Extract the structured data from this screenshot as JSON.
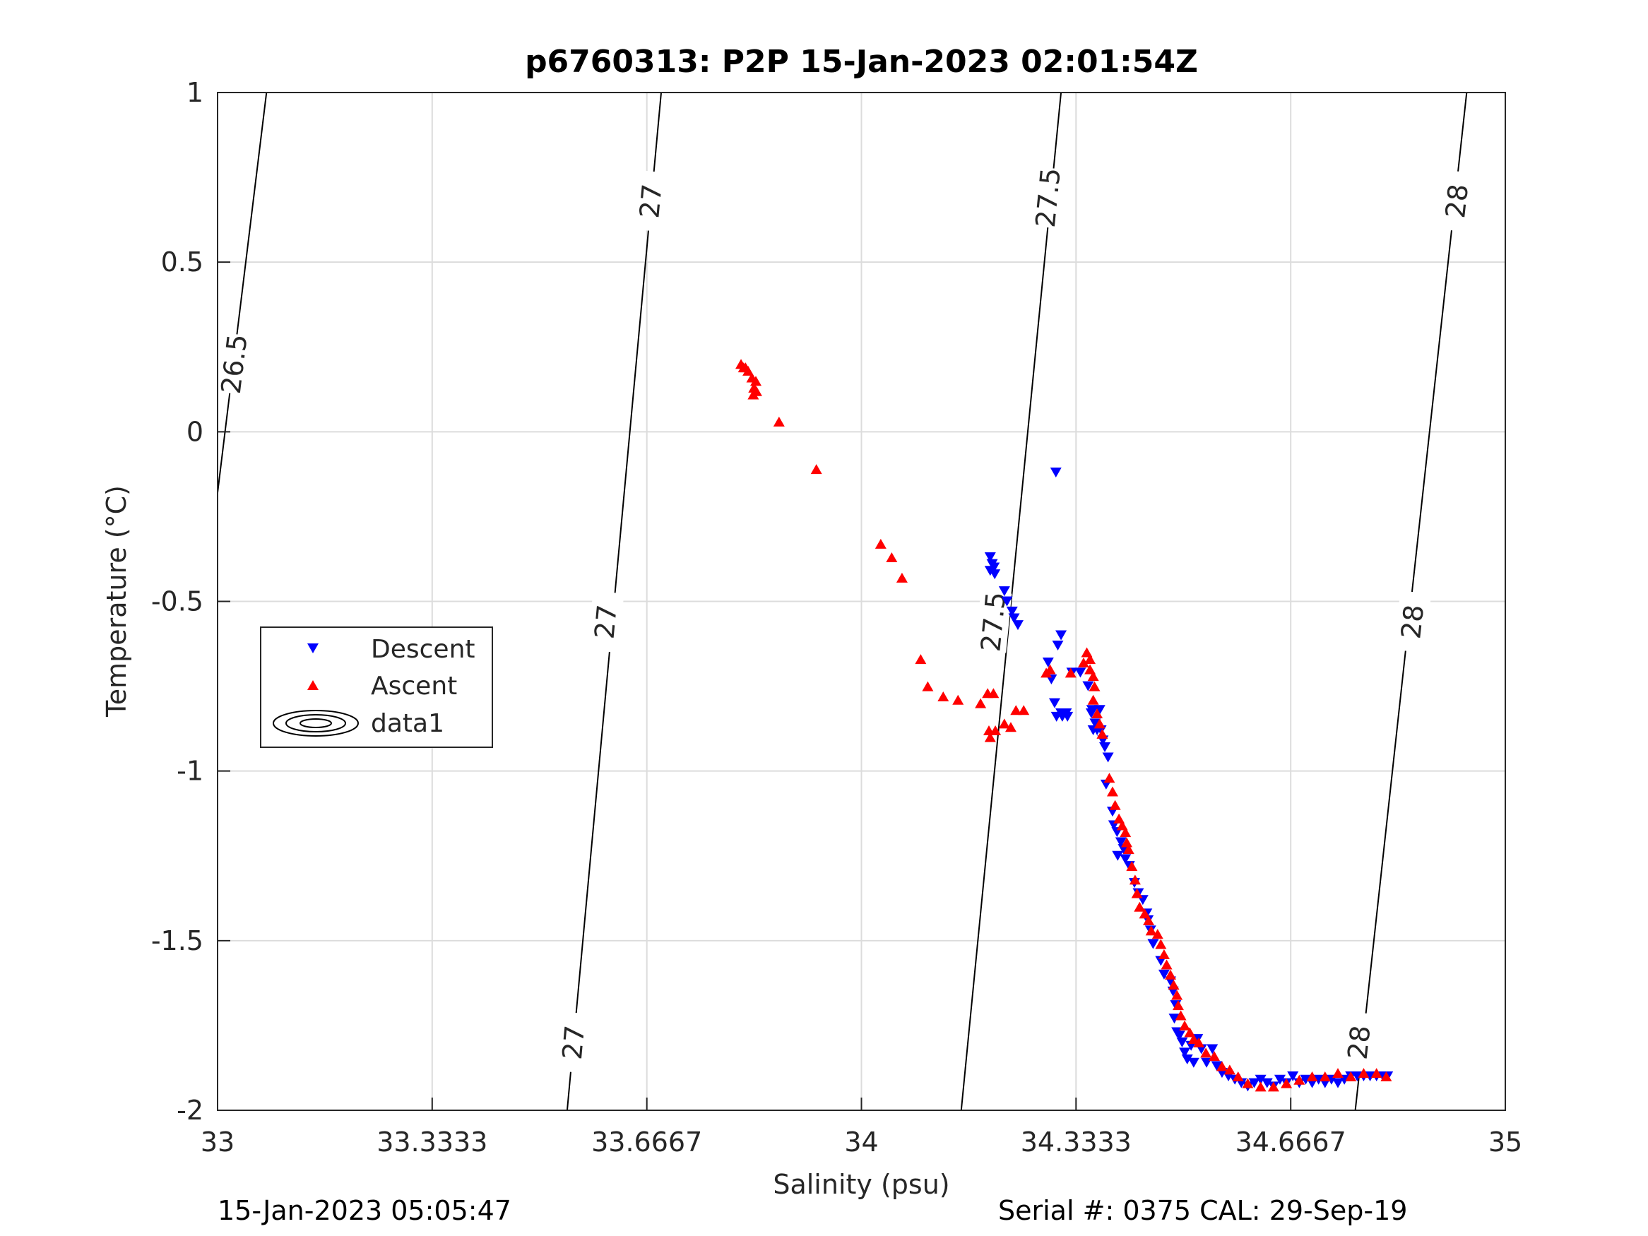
{
  "chart_data": {
    "type": "scatter",
    "title": "p6760313: P2P 15-Jan-2023 02:01:54Z",
    "xlabel": "Salinity (psu)",
    "ylabel": "Temperature (°C)",
    "xlim": [
      33,
      35
    ],
    "ylim": [
      -2,
      1
    ],
    "xticks": [
      33,
      33.3333,
      33.6667,
      34,
      34.3333,
      34.6667,
      35
    ],
    "xtick_labels": [
      "33",
      "33.3333",
      "33.6667",
      "34",
      "34.3333",
      "34.6667",
      "35"
    ],
    "yticks": [
      -2,
      -1.5,
      -1,
      -0.5,
      0,
      0.5,
      1
    ],
    "ytick_labels": [
      "-2",
      "-1.5",
      "-1",
      "-0.5",
      "0",
      "0.5",
      "1"
    ],
    "grid": true,
    "legend_position": "left-middle",
    "legend": [
      "Descent",
      "Ascent",
      "data1"
    ],
    "contours": [
      {
        "level": "26.5",
        "points": [
          [
            33.0,
            -0.18
          ],
          [
            33.076,
            1.0
          ]
        ],
        "labels": [
          [
            33.026,
            0.2
          ]
        ]
      },
      {
        "level": "27",
        "points": [
          [
            33.543,
            -2.0
          ],
          [
            33.689,
            1.0
          ]
        ],
        "labels": [
          [
            33.553,
            -1.8
          ],
          [
            33.603,
            -0.56
          ],
          [
            33.673,
            0.68
          ]
        ]
      },
      {
        "level": "27.5",
        "points": [
          [
            34.155,
            -2.0
          ],
          [
            34.31,
            1.0
          ]
        ],
        "labels": [
          [
            34.205,
            -0.56
          ],
          [
            34.29,
            0.69
          ]
        ]
      },
      {
        "level": "28",
        "points": [
          [
            34.767,
            -2.0
          ],
          [
            34.94,
            1.0
          ]
        ],
        "labels": [
          [
            34.773,
            -1.8
          ],
          [
            34.856,
            -0.56
          ],
          [
            34.925,
            0.68
          ]
        ]
      }
    ],
    "series": [
      {
        "name": "Descent",
        "marker": "triangle-down",
        "color": "#0000ff",
        "points": [
          [
            34.302,
            -0.12
          ],
          [
            34.2,
            -0.37
          ],
          [
            34.203,
            -0.39
          ],
          [
            34.206,
            -0.4
          ],
          [
            34.2,
            -0.41
          ],
          [
            34.207,
            -0.42
          ],
          [
            34.222,
            -0.47
          ],
          [
            34.226,
            -0.5
          ],
          [
            34.234,
            -0.53
          ],
          [
            34.237,
            -0.55
          ],
          [
            34.243,
            -0.57
          ],
          [
            34.29,
            -0.68
          ],
          [
            34.295,
            -0.73
          ],
          [
            34.3,
            -0.8
          ],
          [
            34.31,
            -0.83
          ],
          [
            34.303,
            -0.84
          ],
          [
            34.312,
            -0.84
          ],
          [
            34.318,
            -0.83
          ],
          [
            34.32,
            -0.84
          ],
          [
            34.31,
            -0.6
          ],
          [
            34.305,
            -0.63
          ],
          [
            34.327,
            -0.71
          ],
          [
            34.34,
            -0.71
          ],
          [
            34.352,
            -0.75
          ],
          [
            34.358,
            -0.82
          ],
          [
            34.357,
            -0.83
          ],
          [
            34.363,
            -0.86
          ],
          [
            34.36,
            -0.88
          ],
          [
            34.366,
            -0.88
          ],
          [
            34.372,
            -0.88
          ],
          [
            34.375,
            -0.91
          ],
          [
            34.378,
            -0.93
          ],
          [
            34.383,
            -0.96
          ],
          [
            34.37,
            -0.82
          ],
          [
            34.38,
            -1.04
          ],
          [
            34.39,
            -1.12
          ],
          [
            34.392,
            -1.16
          ],
          [
            34.397,
            -1.18
          ],
          [
            34.403,
            -1.21
          ],
          [
            34.407,
            -1.23
          ],
          [
            34.398,
            -1.25
          ],
          [
            34.41,
            -1.26
          ],
          [
            34.416,
            -1.28
          ],
          [
            34.424,
            -1.33
          ],
          [
            34.43,
            -1.36
          ],
          [
            34.437,
            -1.38
          ],
          [
            34.443,
            -1.42
          ],
          [
            34.445,
            -1.44
          ],
          [
            34.449,
            -1.47
          ],
          [
            34.453,
            -1.51
          ],
          [
            34.465,
            -1.56
          ],
          [
            34.47,
            -1.6
          ],
          [
            34.48,
            -1.62
          ],
          [
            34.484,
            -1.65
          ],
          [
            34.488,
            -1.69
          ],
          [
            34.486,
            -1.73
          ],
          [
            34.49,
            -1.77
          ],
          [
            34.494,
            -1.78
          ],
          [
            34.498,
            -1.8
          ],
          [
            34.502,
            -1.83
          ],
          [
            34.506,
            -1.85
          ],
          [
            34.512,
            -1.81
          ],
          [
            34.516,
            -1.86
          ],
          [
            34.522,
            -1.79
          ],
          [
            34.528,
            -1.82
          ],
          [
            34.536,
            -1.86
          ],
          [
            34.545,
            -1.82
          ],
          [
            34.552,
            -1.87
          ],
          [
            34.56,
            -1.89
          ],
          [
            34.57,
            -1.9
          ],
          [
            34.58,
            -1.91
          ],
          [
            34.59,
            -1.92
          ],
          [
            34.6,
            -1.93
          ],
          [
            34.61,
            -1.92
          ],
          [
            34.62,
            -1.91
          ],
          [
            34.63,
            -1.92
          ],
          [
            34.64,
            -1.93
          ],
          [
            34.65,
            -1.91
          ],
          [
            34.66,
            -1.92
          ],
          [
            34.67,
            -1.9
          ],
          [
            34.68,
            -1.92
          ],
          [
            34.69,
            -1.91
          ],
          [
            34.7,
            -1.92
          ],
          [
            34.71,
            -1.91
          ],
          [
            34.72,
            -1.92
          ],
          [
            34.73,
            -1.91
          ],
          [
            34.74,
            -1.92
          ],
          [
            34.75,
            -1.91
          ],
          [
            34.76,
            -1.9
          ],
          [
            34.77,
            -1.9
          ],
          [
            34.78,
            -1.9
          ],
          [
            34.79,
            -1.9
          ],
          [
            34.8,
            -1.9
          ],
          [
            34.81,
            -1.9
          ],
          [
            34.817,
            -1.9
          ]
        ]
      },
      {
        "name": "Ascent",
        "marker": "triangle-up",
        "color": "#ff0000",
        "points": [
          [
            33.813,
            0.2
          ],
          [
            33.817,
            0.19
          ],
          [
            33.82,
            0.19
          ],
          [
            33.824,
            0.18
          ],
          [
            33.83,
            0.16
          ],
          [
            33.836,
            0.15
          ],
          [
            33.833,
            0.13
          ],
          [
            33.837,
            0.12
          ],
          [
            33.832,
            0.11
          ],
          [
            33.872,
            0.03
          ],
          [
            33.93,
            -0.11
          ],
          [
            34.03,
            -0.33
          ],
          [
            34.047,
            -0.37
          ],
          [
            34.063,
            -0.43
          ],
          [
            34.092,
            -0.67
          ],
          [
            34.103,
            -0.75
          ],
          [
            34.127,
            -0.78
          ],
          [
            34.15,
            -0.79
          ],
          [
            34.185,
            -0.8
          ],
          [
            34.196,
            -0.77
          ],
          [
            34.198,
            -0.88
          ],
          [
            34.208,
            -0.88
          ],
          [
            34.2,
            -0.9
          ],
          [
            34.222,
            -0.86
          ],
          [
            34.232,
            -0.87
          ],
          [
            34.24,
            -0.82
          ],
          [
            34.252,
            -0.82
          ],
          [
            34.205,
            -0.77
          ],
          [
            34.287,
            -0.71
          ],
          [
            34.293,
            -0.7
          ],
          [
            34.325,
            -0.71
          ],
          [
            34.345,
            -0.68
          ],
          [
            34.35,
            -0.65
          ],
          [
            34.355,
            -0.67
          ],
          [
            34.355,
            -0.7
          ],
          [
            34.36,
            -0.72
          ],
          [
            34.362,
            -0.75
          ],
          [
            34.36,
            -0.79
          ],
          [
            34.366,
            -0.83
          ],
          [
            34.37,
            -0.86
          ],
          [
            34.374,
            -0.89
          ],
          [
            34.385,
            -1.02
          ],
          [
            34.39,
            -1.06
          ],
          [
            34.394,
            -1.1
          ],
          [
            34.4,
            -1.14
          ],
          [
            34.405,
            -1.16
          ],
          [
            34.41,
            -1.18
          ],
          [
            34.412,
            -1.21
          ],
          [
            34.415,
            -1.23
          ],
          [
            34.42,
            -1.28
          ],
          [
            34.425,
            -1.32
          ],
          [
            34.428,
            -1.36
          ],
          [
            34.432,
            -1.4
          ],
          [
            34.44,
            -1.42
          ],
          [
            34.446,
            -1.44
          ],
          [
            34.45,
            -1.47
          ],
          [
            34.46,
            -1.48
          ],
          [
            34.465,
            -1.51
          ],
          [
            34.47,
            -1.54
          ],
          [
            34.474,
            -1.57
          ],
          [
            34.48,
            -1.6
          ],
          [
            34.485,
            -1.63
          ],
          [
            34.49,
            -1.66
          ],
          [
            34.492,
            -1.69
          ],
          [
            34.496,
            -1.72
          ],
          [
            34.502,
            -1.75
          ],
          [
            34.51,
            -1.77
          ],
          [
            34.516,
            -1.79
          ],
          [
            34.524,
            -1.8
          ],
          [
            34.535,
            -1.83
          ],
          [
            34.548,
            -1.84
          ],
          [
            34.56,
            -1.87
          ],
          [
            34.572,
            -1.88
          ],
          [
            34.585,
            -1.9
          ],
          [
            34.6,
            -1.92
          ],
          [
            34.62,
            -1.93
          ],
          [
            34.64,
            -1.93
          ],
          [
            34.66,
            -1.92
          ],
          [
            34.68,
            -1.91
          ],
          [
            34.7,
            -1.9
          ],
          [
            34.72,
            -1.9
          ],
          [
            34.74,
            -1.89
          ],
          [
            34.76,
            -1.9
          ],
          [
            34.78,
            -1.89
          ],
          [
            34.8,
            -1.89
          ],
          [
            34.815,
            -1.9
          ]
        ]
      }
    ]
  },
  "footer": {
    "timestamp": "15-Jan-2023 05:05:47",
    "serial": "Serial #: 0375  CAL: 29-Sep-19"
  }
}
